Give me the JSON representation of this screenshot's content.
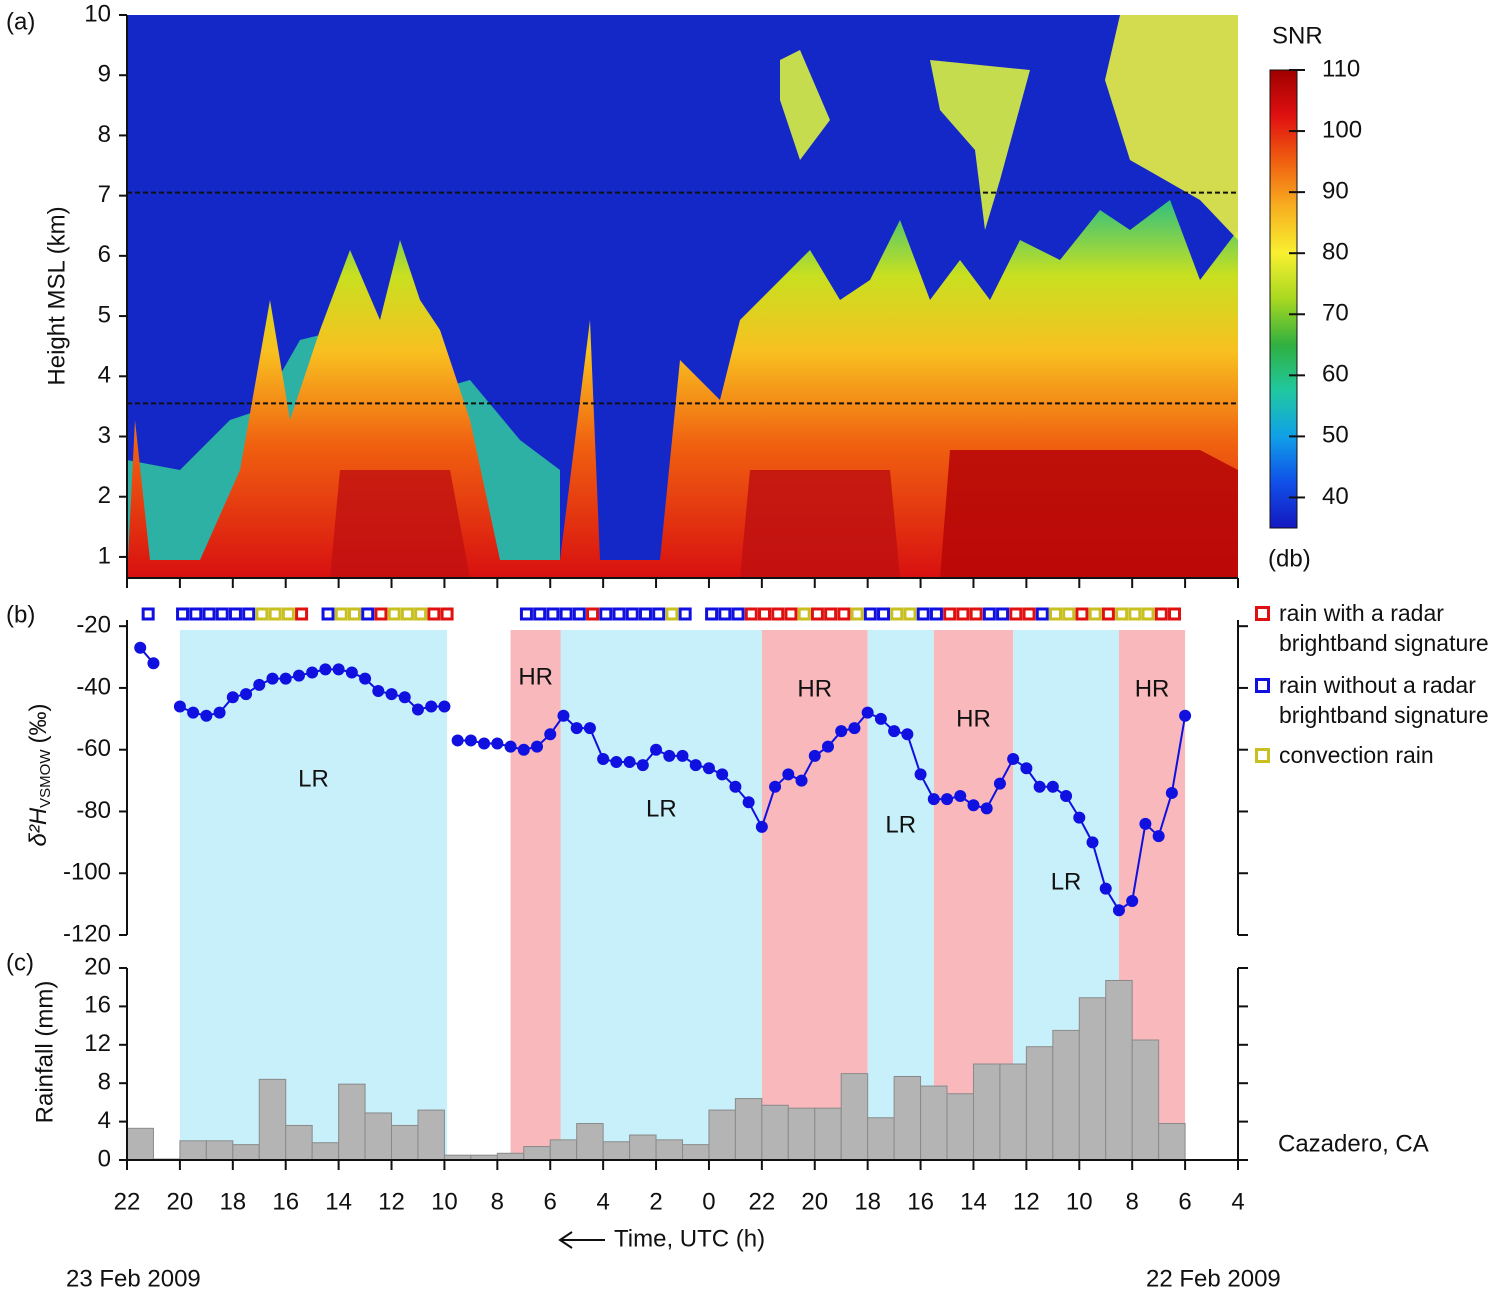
{
  "chart_data": [
    {
      "type": "heatmap",
      "panel_label": "(a)",
      "ylabel": "Height MSL (km)",
      "xlim": [
        46,
        4
      ],
      "ylim": [
        0.65,
        10
      ],
      "yticks": [
        1,
        2,
        3,
        4,
        5,
        6,
        7,
        8,
        9,
        10
      ],
      "hlines": [
        3.55,
        7.05
      ],
      "colorbar": {
        "title": "SNR",
        "unit": "(db)",
        "lim": [
          35,
          110
        ],
        "ticks": [
          40,
          50,
          60,
          70,
          80,
          90,
          100,
          110
        ],
        "colors": [
          "#1418c0",
          "#1050e8",
          "#10a0e8",
          "#20c8a0",
          "#30b040",
          "#a8d820",
          "#f8f030",
          "#f8b020",
          "#f06010",
          "#e01010",
          "#a00000"
        ]
      }
    },
    {
      "type": "line",
      "panel_label": "(b)",
      "ylabel": "δ²H",
      "ylabel_sub": "VSMOW",
      "ylabel_unit": "(‰)",
      "xlim": [
        46,
        4
      ],
      "ylim": [
        -120,
        -18
      ],
      "yticks": [
        -20,
        -40,
        -60,
        -80,
        -100,
        -120
      ],
      "color": "#1010e0",
      "x": [
        45.5,
        45,
        null,
        44,
        43.5,
        43,
        42.5,
        42,
        41.5,
        41,
        40.5,
        40,
        39.5,
        39,
        38.5,
        38,
        37.5,
        37,
        36.5,
        36,
        35.5,
        35,
        34.5,
        34,
        null,
        33.5,
        33,
        32.5,
        32,
        31.5,
        31,
        30.5,
        30,
        29.5,
        29,
        28.5,
        28,
        27.5,
        27,
        26.5,
        26,
        25.5,
        25,
        24.5,
        24,
        23.5,
        23,
        22.5,
        22,
        21.5,
        21,
        20.5,
        20,
        19.5,
        19,
        18.5,
        18,
        17.5,
        17,
        16.5,
        16,
        15.5,
        15,
        14.5,
        14,
        13.5,
        13,
        12.5,
        12,
        11.5,
        11,
        10.5,
        10,
        9.5,
        9,
        8.5,
        8,
        7.5,
        7,
        6.5,
        6
      ],
      "values": [
        -27,
        -32,
        null,
        -46,
        -48,
        -49,
        -48,
        -43,
        -42,
        -39,
        -37,
        -37,
        -36,
        -35,
        -34,
        -34,
        -35,
        -37,
        -41,
        -42,
        -43,
        -47,
        -46,
        -46,
        null,
        -57,
        -57,
        -58,
        -58,
        -59,
        -60,
        -59,
        -55,
        -49,
        -53,
        -53,
        -63,
        -64,
        -64,
        -65,
        -60,
        -62,
        -62,
        -65,
        -66,
        -68,
        -72,
        -77,
        -85,
        -72,
        -68,
        -70,
        -62,
        -59,
        -54,
        -53,
        -48,
        -50,
        -54,
        -55,
        -68,
        -76,
        -76,
        -75,
        -78,
        -79,
        -71,
        -63,
        -66,
        -72,
        -72,
        -75,
        -82,
        -90,
        -105,
        -112,
        -109,
        -84,
        -88,
        -74,
        -49
      ],
      "regions": [
        {
          "from": 44,
          "to": 33.9,
          "label": "LR",
          "color": "#c8f0fa"
        },
        {
          "from": 31.5,
          "to": 29.6,
          "label": "HR",
          "color": "#f8b8bc"
        },
        {
          "from": 29.6,
          "to": 22,
          "label": "LR",
          "color": "#c8f0fa"
        },
        {
          "from": 22,
          "to": 18,
          "label": "HR",
          "color": "#f8b8bc"
        },
        {
          "from": 18,
          "to": 15.5,
          "label": "LR",
          "color": "#c8f0fa"
        },
        {
          "from": 15.5,
          "to": 12.5,
          "label": "HR",
          "color": "#f8b8bc"
        },
        {
          "from": 12.5,
          "to": 8.5,
          "label": "LR",
          "color": "#c8f0fa"
        },
        {
          "from": 8.5,
          "to": 6,
          "label": "HR",
          "color": "#f8b8bc"
        }
      ],
      "markers": [
        {
          "name": "rain with a radar brightband signature",
          "color": "#e01010",
          "x": [
            39.4,
            36.4,
            34.4,
            33.9,
            28.4,
            22.4,
            21.9,
            21.4,
            20.9,
            19.9,
            19.4,
            18.9,
            14.9,
            14.4,
            13.9,
            12.4,
            11.9,
            9.9,
            8.9,
            6.9,
            6.4
          ]
        },
        {
          "name": "rain without a radar brightband signature",
          "color": "#1010e0",
          "x": [
            45.2,
            43.9,
            43.4,
            42.9,
            42.4,
            41.9,
            41.4,
            38.4,
            36.9,
            30.9,
            30.4,
            29.9,
            29.4,
            28.9,
            27.9,
            27.4,
            26.9,
            26.4,
            25.9,
            24.9,
            23.9,
            23.4,
            22.9,
            17.9,
            17.4,
            15.9,
            15.4,
            13.4,
            12.9,
            11.4
          ]
        },
        {
          "name": "convection rain",
          "color": "#c8c020",
          "x": [
            40.9,
            40.4,
            39.9,
            37.9,
            37.4,
            35.9,
            35.4,
            34.9,
            25.4,
            20.4,
            18.4,
            16.9,
            16.4,
            10.9,
            10.4,
            9.4,
            8.4,
            7.9,
            7.4
          ]
        }
      ]
    },
    {
      "type": "histogram",
      "panel_label": "(c)",
      "ylabel": "Rainfall (mm)",
      "xlabel": "Time, UTC (h)",
      "annotation": "Cazadero, CA",
      "date_left": "23 Feb 2009",
      "date_right": "22 Feb 2009",
      "xlim": [
        46,
        4
      ],
      "ylim": [
        0,
        20
      ],
      "yticks": [
        0,
        4,
        8,
        12,
        16,
        20
      ],
      "color": "#b4b4b4",
      "xticks": [
        {
          "value": 46,
          "label": "22"
        },
        {
          "value": 44,
          "label": "20"
        },
        {
          "value": 42,
          "label": "18"
        },
        {
          "value": 40,
          "label": "16"
        },
        {
          "value": 38,
          "label": "14"
        },
        {
          "value": 36,
          "label": "12"
        },
        {
          "value": 34,
          "label": "10"
        },
        {
          "value": 32,
          "label": "8"
        },
        {
          "value": 30,
          "label": "6"
        },
        {
          "value": 28,
          "label": "4"
        },
        {
          "value": 26,
          "label": "2"
        },
        {
          "value": 24,
          "label": "0"
        },
        22,
        20,
        18,
        16,
        14,
        12,
        10,
        8,
        6,
        4
      ],
      "bins": [
        46,
        45,
        44,
        43,
        42,
        41,
        40,
        39,
        38,
        37,
        36,
        35,
        34,
        33,
        32,
        31,
        30,
        29,
        28,
        27,
        26,
        25,
        24,
        23,
        22,
        21,
        20,
        19,
        18,
        17,
        16,
        15,
        14,
        13,
        12,
        11,
        10,
        9,
        8,
        7,
        6,
        5
      ],
      "values": [
        3.3,
        0.1,
        2.0,
        2.0,
        1.6,
        8.4,
        3.6,
        1.8,
        7.9,
        4.9,
        3.6,
        5.2,
        0.5,
        0.5,
        0.7,
        1.4,
        2.1,
        3.8,
        1.9,
        2.6,
        2.1,
        1.6,
        5.2,
        6.4,
        5.7,
        5.4,
        5.4,
        9.0,
        4.4,
        8.7,
        7.7,
        6.9,
        10.0,
        10.0,
        11.8,
        13.5,
        16.9,
        18.7,
        12.5,
        3.8,
        0
      ]
    }
  ]
}
